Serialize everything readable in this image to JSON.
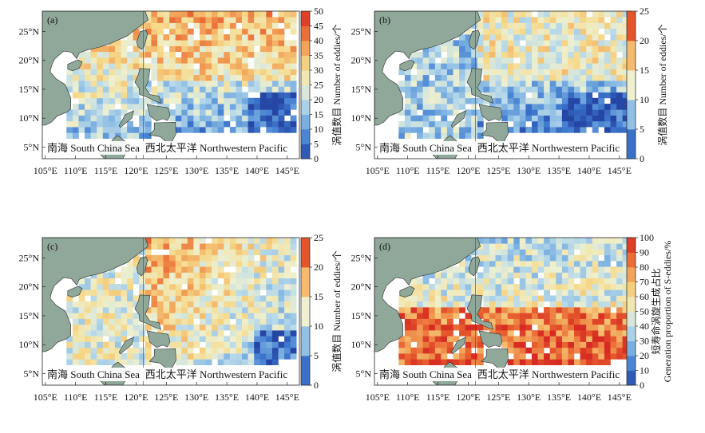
{
  "panels": [
    {
      "label": "(a)",
      "colorbar": {
        "ticks": [
          "0",
          "5",
          "10",
          "15",
          "20",
          "25",
          "30",
          "35",
          "40",
          "45",
          "50"
        ],
        "max": 50,
        "title": "涡值数目 Number of eddies/个"
      },
      "region_labels": {
        "scs": "南海 South China Sea",
        "nwp": "西北太平洋 Northwestern Pacific"
      },
      "pattern": "north-high"
    },
    {
      "label": "(b)",
      "colorbar": {
        "ticks": [
          "0",
          "5",
          "10",
          "15",
          "20",
          "25"
        ],
        "max": 25,
        "title": "涡值数目 Number of eddies/个"
      },
      "region_labels": {
        "scs": "南海 South China Sea",
        "nwp": "西北太平洋 Northwestern Pacific"
      },
      "pattern": "north-mid"
    },
    {
      "label": "(c)",
      "colorbar": {
        "ticks": [
          "0",
          "5",
          "10",
          "15",
          "20",
          "25"
        ],
        "max": 25,
        "title": "涡值数目 Number of eddies/个"
      },
      "region_labels": {
        "scs": "南海 South China Sea",
        "nwp": "西北太平洋 Northwestern Pacific"
      },
      "pattern": "west-high"
    },
    {
      "label": "(d)",
      "colorbar": {
        "ticks": [
          "0",
          "10",
          "20",
          "30",
          "40",
          "50",
          "60",
          "70",
          "80",
          "90",
          "100"
        ],
        "max": 100,
        "title_line1": "短寿命涡旋生成占比",
        "title_line2": "Generation proportion of S-eddies/%"
      },
      "region_labels": {
        "scs": "南海 South China Sea",
        "nwp": "西北太平洋 Northwestern Pacific"
      },
      "pattern": "south-high"
    }
  ],
  "axes": {
    "x_ticks": [
      "105°E",
      "110°E",
      "115°E",
      "120°E",
      "125°E",
      "130°E",
      "135°E",
      "140°E",
      "145°E"
    ],
    "y_ticks": [
      "5°N",
      "10°N",
      "15°N",
      "20°N",
      "25°N"
    ]
  },
  "colors": {
    "land": "#8fa89a",
    "land_edge": "#2a2a2a",
    "ocean_bg": "#ffffff",
    "ramp": [
      "#2546a5",
      "#3f7ad0",
      "#79afe0",
      "#b7d9ea",
      "#eef0cf",
      "#f6d98a",
      "#f2a55a",
      "#e8602f",
      "#d62a22"
    ]
  }
}
